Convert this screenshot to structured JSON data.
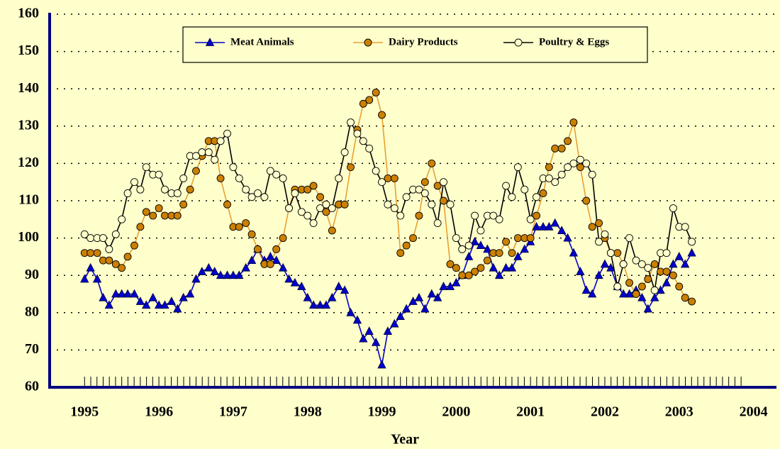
{
  "chart_data": {
    "type": "line",
    "x_label": "Year",
    "x": [
      1995,
      1995.08,
      1995.17,
      1995.25,
      1995.33,
      1995.42,
      1995.5,
      1995.58,
      1995.67,
      1995.75,
      1995.83,
      1995.92,
      1996,
      1996.08,
      1996.17,
      1996.25,
      1996.33,
      1996.42,
      1996.5,
      1996.58,
      1996.67,
      1996.75,
      1996.83,
      1996.92,
      1997,
      1997.08,
      1997.17,
      1997.25,
      1997.33,
      1997.42,
      1997.5,
      1997.58,
      1997.67,
      1997.75,
      1997.83,
      1997.92,
      1998,
      1998.08,
      1998.17,
      1998.25,
      1998.33,
      1998.42,
      1998.5,
      1998.58,
      1998.67,
      1998.75,
      1998.83,
      1998.92,
      1999,
      1999.08,
      1999.17,
      1999.25,
      1999.33,
      1999.42,
      1999.5,
      1999.58,
      1999.67,
      1999.75,
      1999.83,
      1999.92,
      2000,
      2000.08,
      2000.17,
      2000.25,
      2000.33,
      2000.42,
      2000.5,
      2000.58,
      2000.67,
      2000.75,
      2000.83,
      2000.92,
      2001,
      2001.08,
      2001.17,
      2001.25,
      2001.33,
      2001.42,
      2001.5,
      2001.58,
      2001.67,
      2001.75,
      2001.83,
      2001.92,
      2002,
      2002.08,
      2002.17,
      2002.25,
      2002.33,
      2002.42,
      2002.5,
      2002.58,
      2002.67,
      2002.75,
      2002.83,
      2002.92,
      2003,
      2003.08,
      2003.17
    ],
    "series": [
      {
        "name": "Meat Animals",
        "color": "#0000cc",
        "marker": "triangle",
        "values": [
          89,
          92,
          89,
          84,
          82,
          85,
          85,
          85,
          85,
          83,
          82,
          84,
          82,
          82,
          83,
          81,
          84,
          85,
          89,
          91,
          92,
          91,
          90,
          90,
          90,
          90,
          92,
          94,
          97,
          94,
          95,
          94,
          92,
          89,
          88,
          87,
          84,
          82,
          82,
          82,
          84,
          87,
          86,
          80,
          78,
          73,
          75,
          72,
          66,
          75,
          77,
          79,
          81,
          83,
          84,
          81,
          85,
          84,
          87,
          87,
          88,
          90,
          95,
          99,
          98,
          97,
          92,
          90,
          92,
          92,
          95,
          97,
          99,
          103,
          103,
          103,
          104,
          102,
          100,
          96,
          91,
          86,
          85,
          90,
          93,
          92,
          87,
          85,
          85,
          86,
          84,
          81,
          84,
          86,
          88,
          93,
          95,
          93,
          96
        ]
      },
      {
        "name": "Dairy Products",
        "color": "#e8a030",
        "marker_fill": "#cc8000",
        "marker": "circle",
        "values": [
          96,
          96,
          96,
          94,
          94,
          93,
          92,
          95,
          98,
          103,
          107,
          106,
          108,
          106,
          106,
          106,
          109,
          113,
          118,
          122,
          126,
          126,
          116,
          109,
          103,
          103,
          104,
          101,
          97,
          93,
          93,
          97,
          100,
          108,
          113,
          113,
          113,
          114,
          111,
          107,
          102,
          109,
          109,
          119,
          129,
          136,
          137,
          139,
          133,
          116,
          116,
          96,
          98,
          100,
          106,
          115,
          120,
          114,
          110,
          93,
          92,
          90,
          90,
          91,
          92,
          94,
          96,
          96,
          99,
          96,
          100,
          100,
          100,
          106,
          112,
          119,
          124,
          124,
          126,
          131,
          119,
          110,
          103,
          104,
          100,
          96,
          96,
          93,
          88,
          85,
          87,
          89,
          93,
          91,
          91,
          90,
          87,
          84,
          83
        ]
      },
      {
        "name": "Poultry & Eggs",
        "color": "#000000",
        "marker_fill": "#ffffcc",
        "marker": "circle",
        "values": [
          101,
          100,
          100,
          100,
          97,
          101,
          105,
          112,
          115,
          113,
          119,
          117,
          117,
          113,
          112,
          112,
          116,
          122,
          122,
          123,
          123,
          121,
          126,
          128,
          119,
          116,
          113,
          111,
          112,
          111,
          118,
          117,
          116,
          108,
          112,
          107,
          106,
          104,
          108,
          109,
          108,
          116,
          123,
          131,
          128,
          126,
          124,
          118,
          115,
          109,
          108,
          106,
          111,
          113,
          113,
          112,
          109,
          104,
          115,
          109,
          100,
          97,
          98,
          106,
          102,
          106,
          106,
          105,
          114,
          111,
          119,
          113,
          105,
          111,
          116,
          116,
          115,
          117,
          119,
          120,
          121,
          120,
          117,
          99,
          101,
          96,
          87,
          93,
          100,
          94,
          93,
          92,
          86,
          96,
          96,
          108,
          103,
          103,
          99
        ]
      }
    ],
    "xlim": [
      1994.53,
      2004.29
    ],
    "xticks": [
      1995,
      1996,
      1997,
      1998,
      1999,
      2000,
      2001,
      2002,
      2003,
      2004
    ],
    "ylim": [
      60,
      160
    ],
    "yticks": [
      60,
      70,
      80,
      90,
      100,
      110,
      120,
      130,
      140,
      150,
      160
    ],
    "grid": true,
    "background": "#ffffcc",
    "axis_color": "#000080",
    "legend": "top"
  }
}
